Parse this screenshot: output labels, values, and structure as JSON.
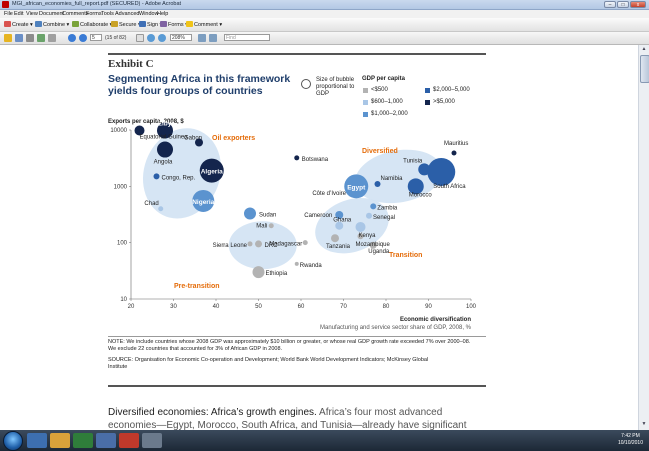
{
  "window": {
    "title": "MGI_african_economies_full_report.pdf (SECURED) - Adobe Acrobat",
    "buttons": [
      "–",
      "□",
      "x"
    ]
  },
  "menu": [
    "File",
    "Edit",
    "View",
    "Document",
    "Comments",
    "Forms",
    "Tools",
    "Advanced",
    "Window",
    "Help"
  ],
  "toolbar": {
    "create": "Create",
    "combine": "Combine",
    "collaborate": "Collaborate",
    "secure": "Secure",
    "sign": "Sign",
    "forms": "Forms",
    "comment": "Comment"
  },
  "nav": {
    "page_number": "5",
    "page_count": "(15 of 82)",
    "zoom": "208%",
    "find_placeholder": "Find"
  },
  "page": {
    "exhibit": "Exhibit C",
    "headline": "Segmenting Africa in this framework yields four groups of countries",
    "legend_size": "Size of bubble proportional to GDP",
    "legend_title": "GDP per capita",
    "legend_items": [
      {
        "label": "<$500",
        "color": "#b3b3b3"
      },
      {
        "label": "$600–1,000",
        "color": "#a9c6e6"
      },
      {
        "label": "$1,000–2,000",
        "color": "#5b93cf"
      },
      {
        "label": "$2,000–5,000",
        "color": "#2b5fa8"
      },
      {
        "label": ">$5,000",
        "color": "#14254d"
      }
    ],
    "note": "NOTE: We include countries whose 2008 GDP was approximately $10 billion or greater, or whose real GDP growth rate exceeded 7% over 2000–08. We exclude 22 countries that accounted for 3% of African GDP in 2008.",
    "source": "SOURCE: Organisation for Economic Co-operation and Development; World Bank World Development Indicators; McKinsey Global Institute",
    "section_heading": "Diversified economies: Africa’s growth engines.",
    "section_text_1": "Africa’s four most advanced",
    "section_text_2": "economies—Egypt, Morocco, South Africa, and Tunisia—already have significant"
  },
  "chart_data": {
    "type": "scatter",
    "ylabel": "Exports per capita, 2008, $",
    "xlabel": "Economic diversification",
    "xlabel_sub": "Manufacturing and service sector share of GDP, 2008, %",
    "xlim": [
      20,
      100
    ],
    "ylim": [
      10,
      10000
    ],
    "y_scale": "log",
    "x_ticks": [
      "20",
      "30",
      "40",
      "50",
      "60",
      "70",
      "80",
      "90",
      "100"
    ],
    "y_ticks": [
      "10000",
      "1000",
      "100",
      "10"
    ],
    "groups": [
      {
        "name": "Oil exporters",
        "color": "#e46c0a"
      },
      {
        "name": "Diversified",
        "color": "#e46c0a"
      },
      {
        "name": "Transition",
        "color": "#e46c0a"
      },
      {
        "name": "Pre-transition",
        "color": "#e46c0a"
      }
    ],
    "points": [
      {
        "name": "Equatorial Guinea",
        "x": 22,
        "y": 9800,
        "size": 5,
        "color": "#14254d"
      },
      {
        "name": "Libya",
        "x": 28,
        "y": 9800,
        "size": 8,
        "color": "#14254d"
      },
      {
        "name": "Gabon",
        "x": 36,
        "y": 6000,
        "size": 4,
        "color": "#14254d"
      },
      {
        "name": "Angola",
        "x": 28,
        "y": 4500,
        "size": 8,
        "color": "#14254d"
      },
      {
        "name": "Algeria",
        "x": 39,
        "y": 1900,
        "size": 12,
        "color": "#14254d"
      },
      {
        "name": "Congo, Rep.",
        "x": 26,
        "y": 1500,
        "size": 3,
        "color": "#2b5fa8"
      },
      {
        "name": "Chad",
        "x": 27,
        "y": 400,
        "size": 2.5,
        "color": "#a9c6e6"
      },
      {
        "name": "Nigeria",
        "x": 37,
        "y": 550,
        "size": 11,
        "color": "#5b93cf"
      },
      {
        "name": "Sudan",
        "x": 48,
        "y": 330,
        "size": 6,
        "color": "#5b93cf"
      },
      {
        "name": "Botswana",
        "x": 59,
        "y": 3200,
        "size": 2.5,
        "color": "#14254d"
      },
      {
        "name": "Egypt",
        "x": 73,
        "y": 1000,
        "size": 12,
        "color": "#5b93cf"
      },
      {
        "name": "Côte d’Ivoire",
        "x": 72,
        "y": 800,
        "size": 4,
        "color": "#5b93cf"
      },
      {
        "name": "Namibia",
        "x": 78,
        "y": 1100,
        "size": 3,
        "color": "#2b5fa8"
      },
      {
        "name": "Tunisia",
        "x": 89,
        "y": 2000,
        "size": 6,
        "color": "#2b5fa8"
      },
      {
        "name": "Morocco",
        "x": 87,
        "y": 1000,
        "size": 8,
        "color": "#2b5fa8"
      },
      {
        "name": "South Africa",
        "x": 93,
        "y": 1800,
        "size": 14,
        "color": "#2b5fa8"
      },
      {
        "name": "Mauritius",
        "x": 96,
        "y": 3900,
        "size": 2.5,
        "color": "#14254d"
      },
      {
        "name": "Zambia",
        "x": 77,
        "y": 440,
        "size": 3,
        "color": "#5b93cf"
      },
      {
        "name": "Cameroon",
        "x": 69,
        "y": 310,
        "size": 4,
        "color": "#5b93cf"
      },
      {
        "name": "Senegal",
        "x": 76,
        "y": 300,
        "size": 3,
        "color": "#a9c6e6"
      },
      {
        "name": "Ghana",
        "x": 69,
        "y": 200,
        "size": 4,
        "color": "#a9c6e6"
      },
      {
        "name": "Kenya",
        "x": 74,
        "y": 190,
        "size": 5,
        "color": "#a9c6e6"
      },
      {
        "name": "Tanzania",
        "x": 68,
        "y": 120,
        "size": 4,
        "color": "#b3b3b3"
      },
      {
        "name": "Mozambique",
        "x": 74,
        "y": 130,
        "size": 3,
        "color": "#b3b3b3"
      },
      {
        "name": "Uganda",
        "x": 77,
        "y": 90,
        "size": 3.5,
        "color": "#b3b3b3"
      },
      {
        "name": "Madagascar",
        "x": 61,
        "y": 100,
        "size": 2.5,
        "color": "#b3b3b3"
      },
      {
        "name": "Rwanda",
        "x": 59,
        "y": 42,
        "size": 2,
        "color": "#b3b3b3"
      },
      {
        "name": "Mali",
        "x": 53,
        "y": 200,
        "size": 2.5,
        "color": "#b3b3b3"
      },
      {
        "name": "Sierra Leone",
        "x": 48,
        "y": 95,
        "size": 2.5,
        "color": "#b3b3b3"
      },
      {
        "name": "DRC",
        "x": 50,
        "y": 95,
        "size": 3.5,
        "color": "#b3b3b3"
      },
      {
        "name": "Ethiopia",
        "x": 50,
        "y": 30,
        "size": 6,
        "color": "#b3b3b3"
      }
    ]
  },
  "taskbar": {
    "time": "7:42 PM",
    "date": "10/10/2010"
  }
}
